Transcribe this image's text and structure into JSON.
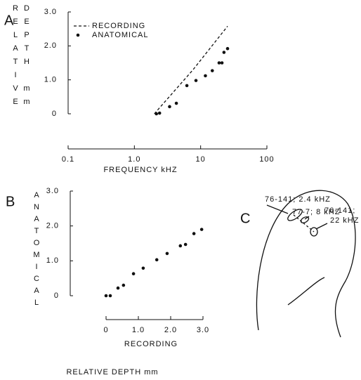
{
  "chart_data": [
    {
      "type": "line",
      "panel": "A",
      "xlabel": "FREQUENCY kHZ",
      "ylabel": "RELATIVE DEPTH mm",
      "xscale": "log",
      "xlim": [
        0.1,
        100
      ],
      "xticks": [
        0.1,
        {
          "value": 1,
          "label": "1.0"
        },
        10,
        100
      ],
      "ylim": [
        0,
        3
      ],
      "yticks": [
        0,
        {
          "value": 1,
          "label": "1.0"
        },
        {
          "value": 2,
          "label": "2.0"
        },
        {
          "value": 3,
          "label": "3.0"
        }
      ],
      "legend": "upper left",
      "series": [
        {
          "name": "RECORDING",
          "color": "#111111",
          "style": "dashed",
          "x": [
            2.0,
            7.7,
            25.5
          ],
          "values": [
            0,
            1.3,
            2.58
          ]
        },
        {
          "name": "ANATOMICAL",
          "color": "#111111",
          "style": "dots",
          "x": [
            2.15,
            2.4,
            3.4,
            4.3,
            6.2,
            8.5,
            11.8,
            15,
            19,
            21,
            22.5,
            25.5
          ],
          "values": [
            0,
            0.02,
            0.21,
            0.31,
            0.83,
            0.98,
            1.12,
            1.27,
            1.5,
            1.5,
            1.81,
            1.92
          ]
        }
      ]
    },
    {
      "type": "scatter",
      "panel": "B",
      "xlabel": "RECORDING",
      "caption": "RELATIVE DEPTH mm",
      "ylabel": "ANATOMICAL",
      "color": "#111111",
      "xlim": [
        0,
        3
      ],
      "xticks": [
        0,
        {
          "value": 1,
          "label": "1.0"
        },
        {
          "value": 2,
          "label": "2.0"
        },
        {
          "value": 3,
          "label": "3.0"
        }
      ],
      "ylim": [
        0,
        3
      ],
      "yticks": [
        0,
        {
          "value": 1,
          "label": "1.0"
        },
        {
          "value": 2,
          "label": "2.0"
        },
        {
          "value": 3,
          "label": "3.0"
        }
      ],
      "x": [
        0,
        0.13,
        0.37,
        0.54,
        0.85,
        1.15,
        1.57,
        1.89,
        2.3,
        2.46,
        2.72,
        2.96
      ],
      "values": [
        0,
        0,
        0.22,
        0.3,
        0.63,
        0.79,
        1.03,
        1.21,
        1.43,
        1.47,
        1.78,
        1.9
      ]
    }
  ],
  "diagram": {
    "panel": "C",
    "labels": [
      "76-141; 2.4 kHZ",
      "77-7; 8 kHZ",
      "76-141;",
      "22 kHZ"
    ]
  }
}
